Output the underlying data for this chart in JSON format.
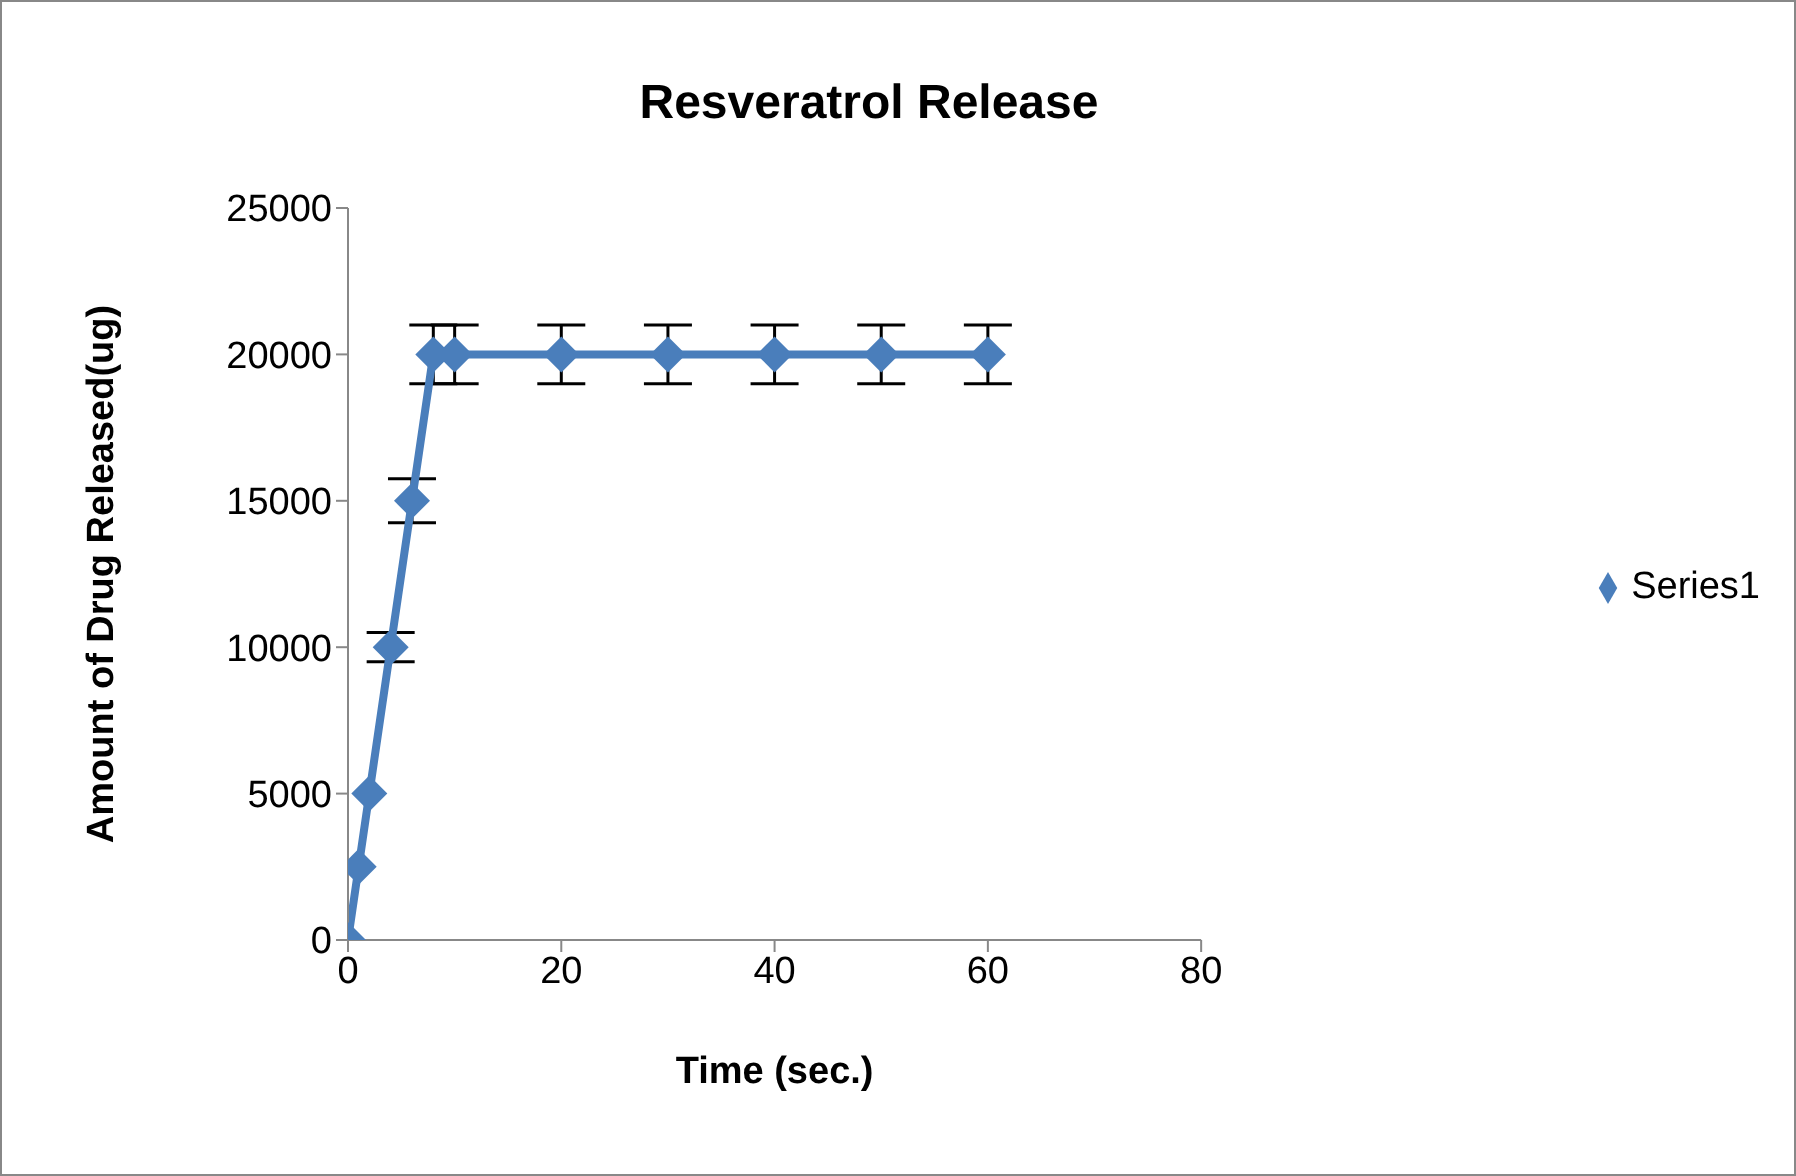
{
  "chart_data": {
    "type": "line",
    "title": "Resveratrol Release",
    "xlabel": "Time (sec.)",
    "ylabel": "Amount of Drug Released(ug)",
    "x": [
      0,
      1,
      2,
      4,
      6,
      8,
      10,
      20,
      30,
      40,
      50,
      60
    ],
    "series": [
      {
        "name": "Series1",
        "color": "#4a7ebb",
        "values": [
          0,
          2500,
          5000,
          10000,
          15000,
          20000,
          20000,
          20000,
          20000,
          20000,
          20000,
          20000
        ],
        "errors": [
          null,
          null,
          null,
          500,
          750,
          1000,
          1000,
          1000,
          1000,
          1000,
          1000,
          1000
        ]
      }
    ],
    "xlim": [
      0,
      80
    ],
    "xticks": [
      0,
      20,
      40,
      60,
      80
    ],
    "ylim": [
      0,
      25000
    ],
    "yticks": [
      0,
      5000,
      10000,
      15000,
      20000,
      25000
    ],
    "grid": false,
    "legend": "right",
    "marker": "diamond",
    "line_style": "solid"
  }
}
